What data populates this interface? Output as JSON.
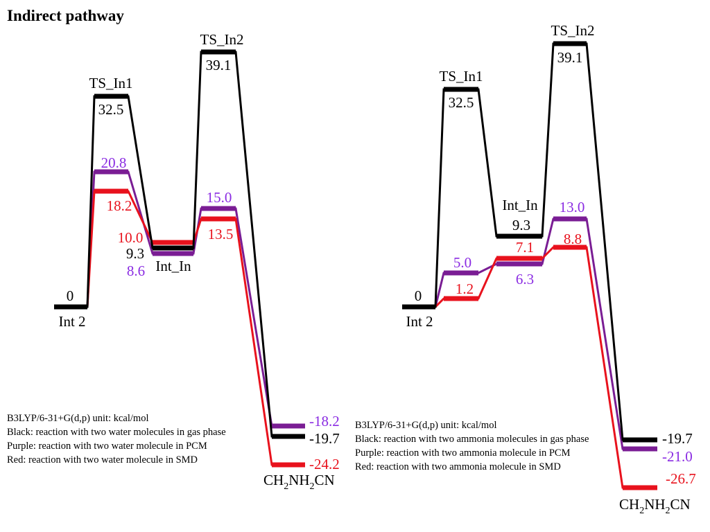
{
  "title": "Indirect pathway",
  "colors": {
    "gas": "#000000",
    "pcm": "#7a1d94",
    "pcm_text": "#8a2be2",
    "smd": "#e8121d"
  },
  "panels": [
    {
      "id": "water",
      "legend": [
        "B3LYP/6-31+G(d,p)  unit: kcal/mol",
        "Black: reaction with two water molecules in gas phase",
        "Purple: reaction with two water molecule in PCM",
        "Red: reaction with two water molecule in SMD"
      ],
      "names": {
        "int2": "Int 2",
        "ts1": "TS_In1",
        "intin": "Int_In",
        "ts2": "TS_In2",
        "product": "CH2NH2CN"
      },
      "series": [
        {
          "name": "Black",
          "color": "gas",
          "values": [
            "0",
            "32.5",
            "9.3",
            "39.1",
            "-19.7"
          ]
        },
        {
          "name": "Purple",
          "color": "pcm",
          "values": [
            "0",
            "20.8",
            "8.6",
            "15.0",
            "-18.2"
          ]
        },
        {
          "name": "Red",
          "color": "smd",
          "values": [
            "0",
            "18.2",
            "10.0",
            "13.5",
            "-24.2"
          ]
        }
      ]
    },
    {
      "id": "ammonia",
      "legend": [
        "B3LYP/6-31+G(d,p)  unit: kcal/mol",
        "Black: reaction with two ammonia molecules in gas phase",
        "Purple: reaction with two ammonia molecule in PCM",
        "Red: reaction with two ammonia molecule in SMD"
      ],
      "names": {
        "int2": "Int 2",
        "ts1": "TS_In1",
        "intin": "Int_In",
        "ts2": "TS_In2",
        "product": "CH2NH2CN"
      },
      "series": [
        {
          "name": "Black",
          "color": "gas",
          "values": [
            "0",
            "32.5",
            "9.3",
            "39.1",
            "-19.7"
          ]
        },
        {
          "name": "Purple",
          "color": "pcm",
          "values": [
            "0",
            "5.0",
            "6.3",
            "13.0",
            "-21.0"
          ]
        },
        {
          "name": "Red",
          "color": "smd",
          "values": [
            "0",
            "1.2",
            "7.1",
            "8.8",
            "-26.7"
          ]
        }
      ]
    }
  ]
}
